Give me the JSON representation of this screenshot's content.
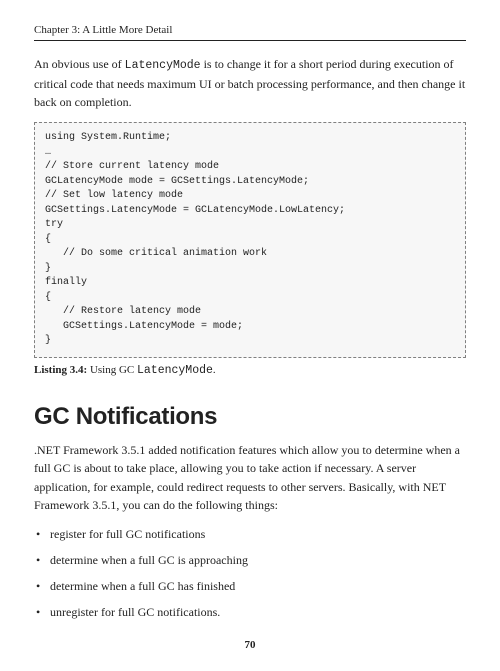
{
  "header": {
    "chapter": "Chapter 3: A Little More Detail"
  },
  "intro": {
    "text_before": "An obvious use of ",
    "code_word": "LatencyMode",
    "text_after": " is to change it for a short period during execution of critical code that needs maximum UI or batch processing performance, and then change it back on completion."
  },
  "code": {
    "lines": "using System.Runtime;\n…\n// Store current latency mode\nGCLatencyMode mode = GCSettings.LatencyMode;\n// Set low latency mode\nGCSettings.LatencyMode = GCLatencyMode.LowLatency;\ntry\n{\n   // Do some critical animation work\n}\nfinally\n{\n   // Restore latency mode\n   GCSettings.LatencyMode = mode;\n}"
  },
  "listing": {
    "label": "Listing 3.4:",
    "caption_before": "   Using GC ",
    "caption_code": "LatencyMode",
    "caption_after": "."
  },
  "section": {
    "title": "GC Notifications",
    "para": ".NET Framework 3.5.1 added notification features which allow you to determine when a full GC is about to take place, allowing you to take action if necessary. A server application, for example, could redirect requests to other servers. Basically, with NET Framework 3.5.1, you can do the following things:",
    "bullets": [
      "register for full GC notifications",
      "determine when a full GC is approaching",
      "determine when a full GC has finished",
      "unregister for full GC notifications."
    ]
  },
  "pageNumber": "70"
}
